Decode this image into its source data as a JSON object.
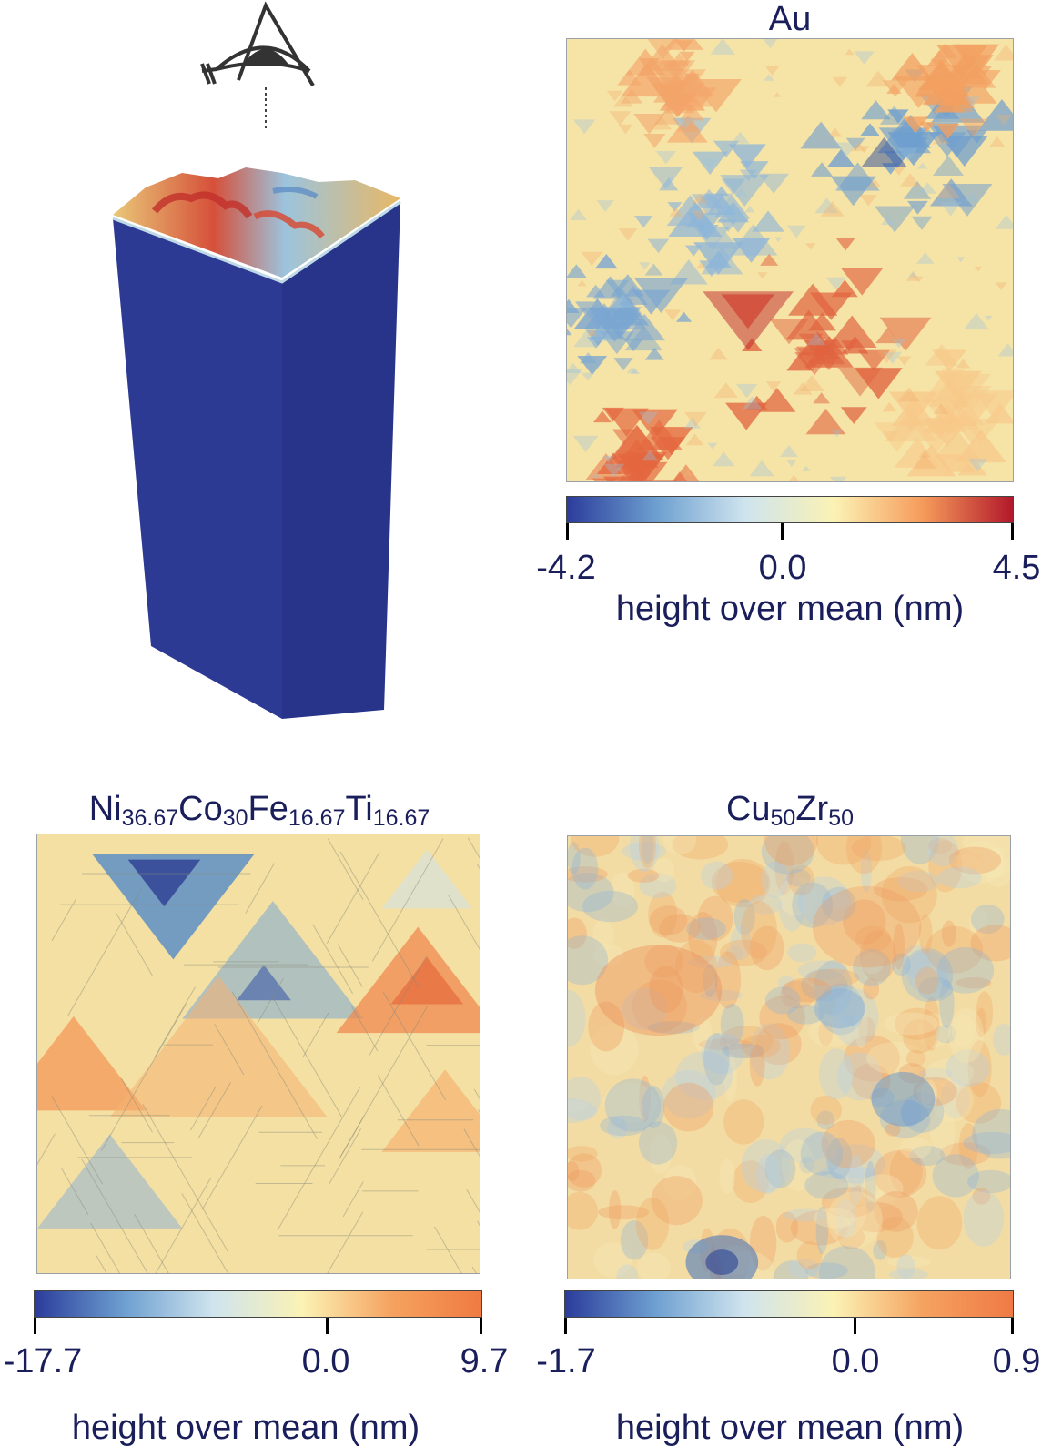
{
  "panels": [
    {
      "title": {
        "base": "Au",
        "parts": []
      },
      "colorbar": {
        "min": "-4.2",
        "mid": "0.0",
        "max": "4.5",
        "label": "height over mean (nm)"
      },
      "colormap": [
        "#2b3c9b",
        "#6d9fd0",
        "#cfe4ee",
        "#fbf2b4",
        "#f59a5a",
        "#b2182b"
      ]
    },
    {
      "title": {
        "parts": [
          [
            "Ni",
            "36.67"
          ],
          [
            "Co",
            "30"
          ],
          [
            "Fe",
            "16.67"
          ],
          [
            "Ti",
            "16.67"
          ]
        ]
      },
      "colorbar": {
        "min": "-17.7",
        "mid": "0.0",
        "max": "9.7",
        "label": "height over mean (nm)"
      },
      "colormap": [
        "#2b3c9b",
        "#6d9fd0",
        "#cfe4ee",
        "#fbf2b4",
        "#f5a25f",
        "#f07a42"
      ]
    },
    {
      "title": {
        "parts": [
          [
            "Cu",
            "50"
          ],
          [
            "Zr",
            "50"
          ]
        ]
      },
      "colorbar": {
        "min": "-1.7",
        "mid": "0.0",
        "max": "0.9",
        "label": "height over mean (nm)"
      },
      "colormap": [
        "#2b3c9b",
        "#6d9fd0",
        "#cfe4ee",
        "#fbf2b4",
        "#f5a25f",
        "#ef7a45"
      ]
    }
  ],
  "icons": {
    "observer": "eye-in-triangle-icon"
  }
}
